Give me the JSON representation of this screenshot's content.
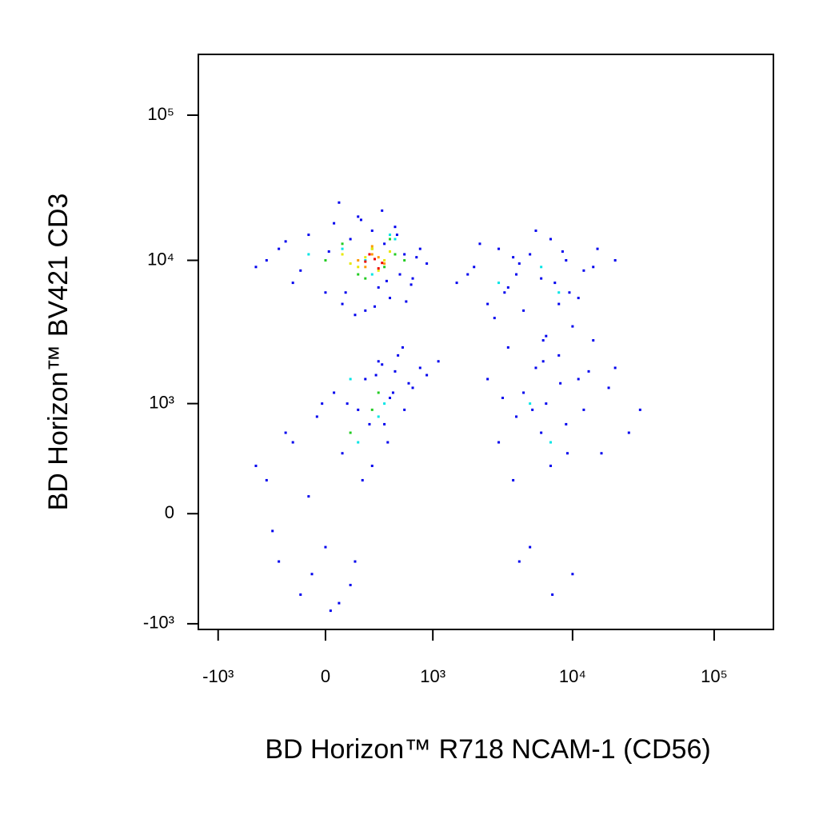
{
  "chart_data": {
    "type": "scatter",
    "xlabel": "BD Horizon™ R718 NCAM-1 (CD56)",
    "ylabel": "BD Horizon™ BV421 CD3",
    "xscale": "biexponential",
    "yscale": "biexponential",
    "xlim": [
      -1400,
      262144
    ],
    "ylim": [
      -1100,
      262144
    ],
    "xticks": [
      {
        "value": -1000,
        "label": "-10³"
      },
      0,
      {
        "value": 1000,
        "label": "10³"
      },
      {
        "value": 10000,
        "label": "10⁴"
      },
      {
        "value": 100000,
        "label": "10⁵"
      }
    ],
    "yticks": [
      {
        "value": -1000,
        "label": "-10³"
      },
      0,
      {
        "value": 1000,
        "label": "10³"
      },
      {
        "value": 10000,
        "label": "10⁴"
      },
      {
        "value": 100000,
        "label": "10⁵"
      }
    ],
    "series": [
      {
        "color": "#0000ee",
        "x": [
          -500,
          -300,
          -200,
          -100,
          0,
          50,
          100,
          150,
          200,
          250,
          300,
          350,
          400,
          450,
          500,
          550,
          600,
          700,
          800,
          900,
          -400,
          -150,
          20,
          120,
          220,
          320,
          420,
          520,
          620,
          750,
          -250,
          80,
          180,
          380,
          680,
          1500,
          2000,
          2500,
          3000,
          3500,
          4000,
          4500,
          5000,
          6000,
          7000,
          8000,
          9000,
          10000,
          12000,
          15000,
          2200,
          2800,
          3300,
          4200,
          5500,
          6500,
          7500,
          8500,
          11000,
          14000,
          1800,
          3800,
          6200,
          9500,
          20000,
          -400,
          -300,
          -200,
          -150,
          -100,
          -50,
          0,
          50,
          100,
          150,
          200,
          250,
          300,
          350,
          400,
          450,
          500,
          600,
          700,
          800,
          -350,
          -250,
          -80,
          30,
          130,
          230,
          330,
          430,
          530,
          650,
          -500,
          -20,
          80,
          180,
          280,
          380,
          480,
          580,
          900,
          1100,
          2500,
          3000,
          3500,
          4000,
          4500,
          5000,
          5500,
          6000,
          6500,
          7000,
          8000,
          9000,
          10000,
          11000,
          12000,
          14000,
          16000,
          18000,
          20000,
          25000,
          3200,
          4200,
          5200,
          6200,
          7200,
          8200,
          9200,
          13000,
          3800,
          30000
        ],
        "y": [
          9000,
          12000,
          7000,
          15000,
          6000,
          18000,
          5000,
          14000,
          20000,
          4500,
          16000,
          6500,
          13000,
          5500,
          17000,
          8000,
          11000,
          7500,
          12000,
          9500,
          10000,
          8500,
          11500,
          6000,
          19000,
          4800,
          7200,
          15000,
          5200,
          10500,
          13500,
          25000,
          4200,
          22000,
          6800,
          7000,
          9000,
          5000,
          12000,
          6500,
          8000,
          4500,
          11000,
          7500,
          14000,
          5000,
          10000,
          3500,
          8500,
          12000,
          13000,
          4000,
          6000,
          9500,
          16000,
          3000,
          7000,
          11500,
          5500,
          9000,
          8000,
          10500,
          2800,
          6000,
          10000,
          200,
          -300,
          500,
          -600,
          100,
          800,
          -200,
          1200,
          400,
          -500,
          900,
          1500,
          300,
          2000,
          700,
          1100,
          1700,
          900,
          1300,
          1800,
          -100,
          600,
          -400,
          -800,
          1000,
          200,
          1600,
          500,
          2200,
          1400,
          300,
          1000,
          -700,
          -300,
          700,
          1900,
          1200,
          2500,
          1600,
          2000,
          1500,
          500,
          2500,
          800,
          1200,
          -200,
          1800,
          600,
          1000,
          300,
          2200,
          700,
          -400,
          1500,
          900,
          2800,
          400,
          1300,
          1800,
          600,
          1100,
          -300,
          900,
          2000,
          -600,
          1400,
          400,
          1700,
          200,
          900
        ]
      },
      {
        "color": "#00e5e5",
        "x": [
          100,
          300,
          500,
          -100,
          200,
          400,
          150,
          350,
          3000,
          6000,
          8000,
          5000,
          7000,
          250,
          450
        ],
        "y": [
          12000,
          8000,
          14000,
          11000,
          500,
          1000,
          1500,
          800,
          7000,
          9000,
          6000,
          1000,
          500,
          10000,
          15000
        ]
      },
      {
        "color": "#22cc22",
        "x": [
          0,
          100,
          200,
          300,
          400,
          500,
          600,
          150,
          350,
          250,
          450,
          300
        ],
        "y": [
          10000,
          13000,
          8000,
          12000,
          9000,
          11000,
          10000,
          600,
          1200,
          7500,
          14000,
          900
        ]
      },
      {
        "color": "#e8e800",
        "x": [
          100,
          200,
          300,
          400,
          250,
          350,
          150,
          450
        ],
        "y": [
          11000,
          9000,
          12000,
          10000,
          10500,
          8500,
          9500,
          11500
        ]
      },
      {
        "color": "#ff9900",
        "x": [
          200,
          300,
          400,
          250,
          350,
          300
        ],
        "y": [
          10000,
          11000,
          9500,
          9000,
          10500,
          12500
        ]
      },
      {
        "color": "#ee0000",
        "x": [
          250,
          320,
          380,
          280,
          350
        ],
        "y": [
          9800,
          10200,
          9600,
          11000,
          8800
        ]
      }
    ]
  }
}
